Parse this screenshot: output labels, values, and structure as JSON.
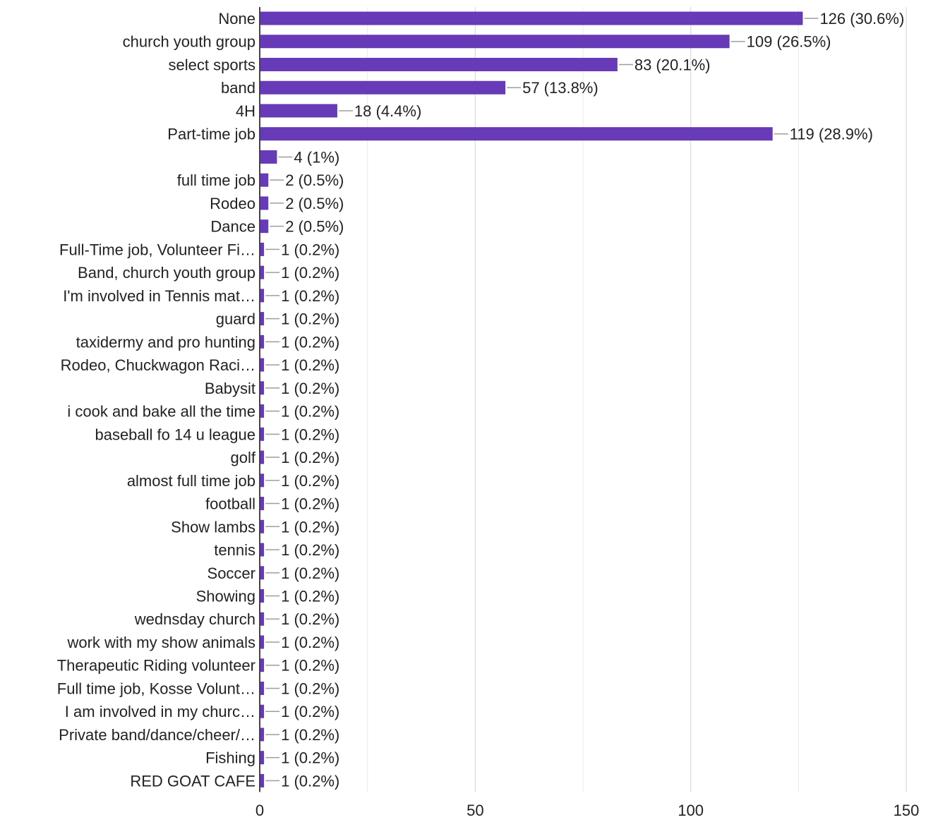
{
  "chart_data": {
    "type": "bar",
    "orientation": "horizontal",
    "title": "",
    "xlabel": "",
    "ylabel": "",
    "xlim": [
      0,
      150
    ],
    "x_ticks": [
      0,
      50,
      100,
      150
    ],
    "x_tick_labels": [
      "0",
      "50",
      "100",
      "150"
    ],
    "grid": true,
    "legend": "none",
    "bar_color": "#673ab7",
    "grid_color": "#e0e0e0",
    "text_color": "#222222",
    "categories": [
      "None",
      "church youth group",
      "select sports",
      "band",
      "4H",
      "Part-time job",
      "",
      "full time job",
      "Rodeo",
      "Dance",
      "Full-Time job, Volunteer Fi…",
      "Band, church youth group",
      "I'm involved in Tennis mat…",
      "guard",
      "taxidermy and pro hunting",
      "Rodeo, Chuckwagon Raci…",
      "Babysit",
      "i cook and bake all the time",
      "baseball fo 14 u league",
      "golf",
      "almost full time job",
      "football",
      "Show lambs",
      "tennis",
      "Soccer",
      "Showing",
      "wednsday church",
      "work with my show animals",
      "Therapeutic Riding volunteer",
      "Full time job, Kosse Volunt…",
      "I am involved in my churc…",
      "Private band/dance/cheer/…",
      "Fishing",
      "RED GOAT CAFE"
    ],
    "values": [
      126,
      109,
      83,
      57,
      18,
      119,
      4,
      2,
      2,
      2,
      1,
      1,
      1,
      1,
      1,
      1,
      1,
      1,
      1,
      1,
      1,
      1,
      1,
      1,
      1,
      1,
      1,
      1,
      1,
      1,
      1,
      1,
      1,
      1
    ],
    "data_labels": [
      "126 (30.6%)",
      "109 (26.5%)",
      "83 (20.1%)",
      "57 (13.8%)",
      "18 (4.4%)",
      "119 (28.9%)",
      "4 (1%)",
      "2 (0.5%)",
      "2 (0.5%)",
      "2 (0.5%)",
      "1 (0.2%)",
      "1 (0.2%)",
      "1 (0.2%)",
      "1 (0.2%)",
      "1 (0.2%)",
      "1 (0.2%)",
      "1 (0.2%)",
      "1 (0.2%)",
      "1 (0.2%)",
      "1 (0.2%)",
      "1 (0.2%)",
      "1 (0.2%)",
      "1 (0.2%)",
      "1 (0.2%)",
      "1 (0.2%)",
      "1 (0.2%)",
      "1 (0.2%)",
      "1 (0.2%)",
      "1 (0.2%)",
      "1 (0.2%)",
      "1 (0.2%)",
      "1 (0.2%)",
      "1 (0.2%)",
      "1 (0.2%)"
    ]
  }
}
